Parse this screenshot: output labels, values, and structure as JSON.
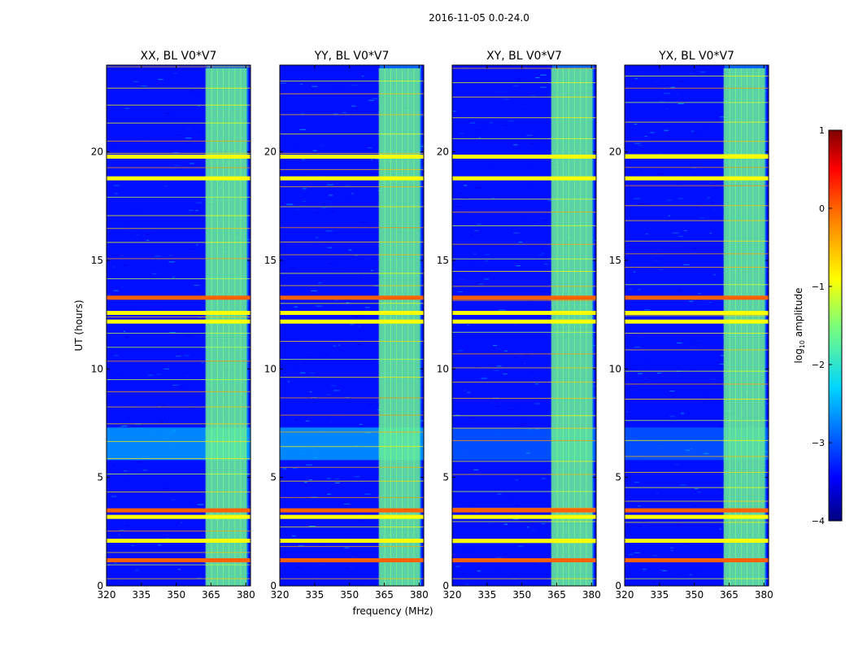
{
  "figure": {
    "suptitle": "2016-11-05 0.0-24.0",
    "xlabel": "frequency (MHz)",
    "ylabel": "UT (hours)"
  },
  "chart_data": {
    "type": "heatmap",
    "colormap": "jet",
    "x": {
      "label": "frequency (MHz)",
      "range": [
        320,
        382
      ],
      "ticks": [
        320,
        335,
        350,
        365,
        380
      ]
    },
    "y": {
      "label": "UT (hours)",
      "range": [
        0,
        24
      ],
      "ticks": [
        0,
        5,
        10,
        15,
        20
      ]
    },
    "panels": [
      {
        "title": "XX, BL V0*V7"
      },
      {
        "title": "YY, BL V0*V7"
      },
      {
        "title": "XY, BL V0*V7"
      },
      {
        "title": "YX, BL V0*V7"
      }
    ],
    "colorbar": {
      "label": "log10 amplitude",
      "label_main": "log",
      "label_sub": "10",
      "label_rest": " amplitude",
      "range": [
        -4,
        1
      ],
      "ticks": [
        1,
        0,
        -1,
        -2,
        -3,
        -4
      ],
      "tick_labels": [
        "1",
        "0",
        "−1",
        "−2",
        "−3",
        "−4"
      ]
    },
    "features": {
      "rfi_channels_mhz": [
        364,
        366.5,
        369,
        371.5,
        374,
        376.5,
        379
      ],
      "rfi_band_mhz": [
        360,
        381
      ],
      "strong_time_bands_hours": [
        1.2,
        2.1,
        3.2,
        3.5,
        12.2,
        12.6,
        13.3,
        18.8,
        19.8
      ],
      "enhanced_time_window_hours": [
        5.8,
        7.3
      ],
      "background_log10_amplitude": -3.3,
      "channel_log10_amplitude": -1.5,
      "strong_band_log10_amplitude": -0.3
    }
  }
}
